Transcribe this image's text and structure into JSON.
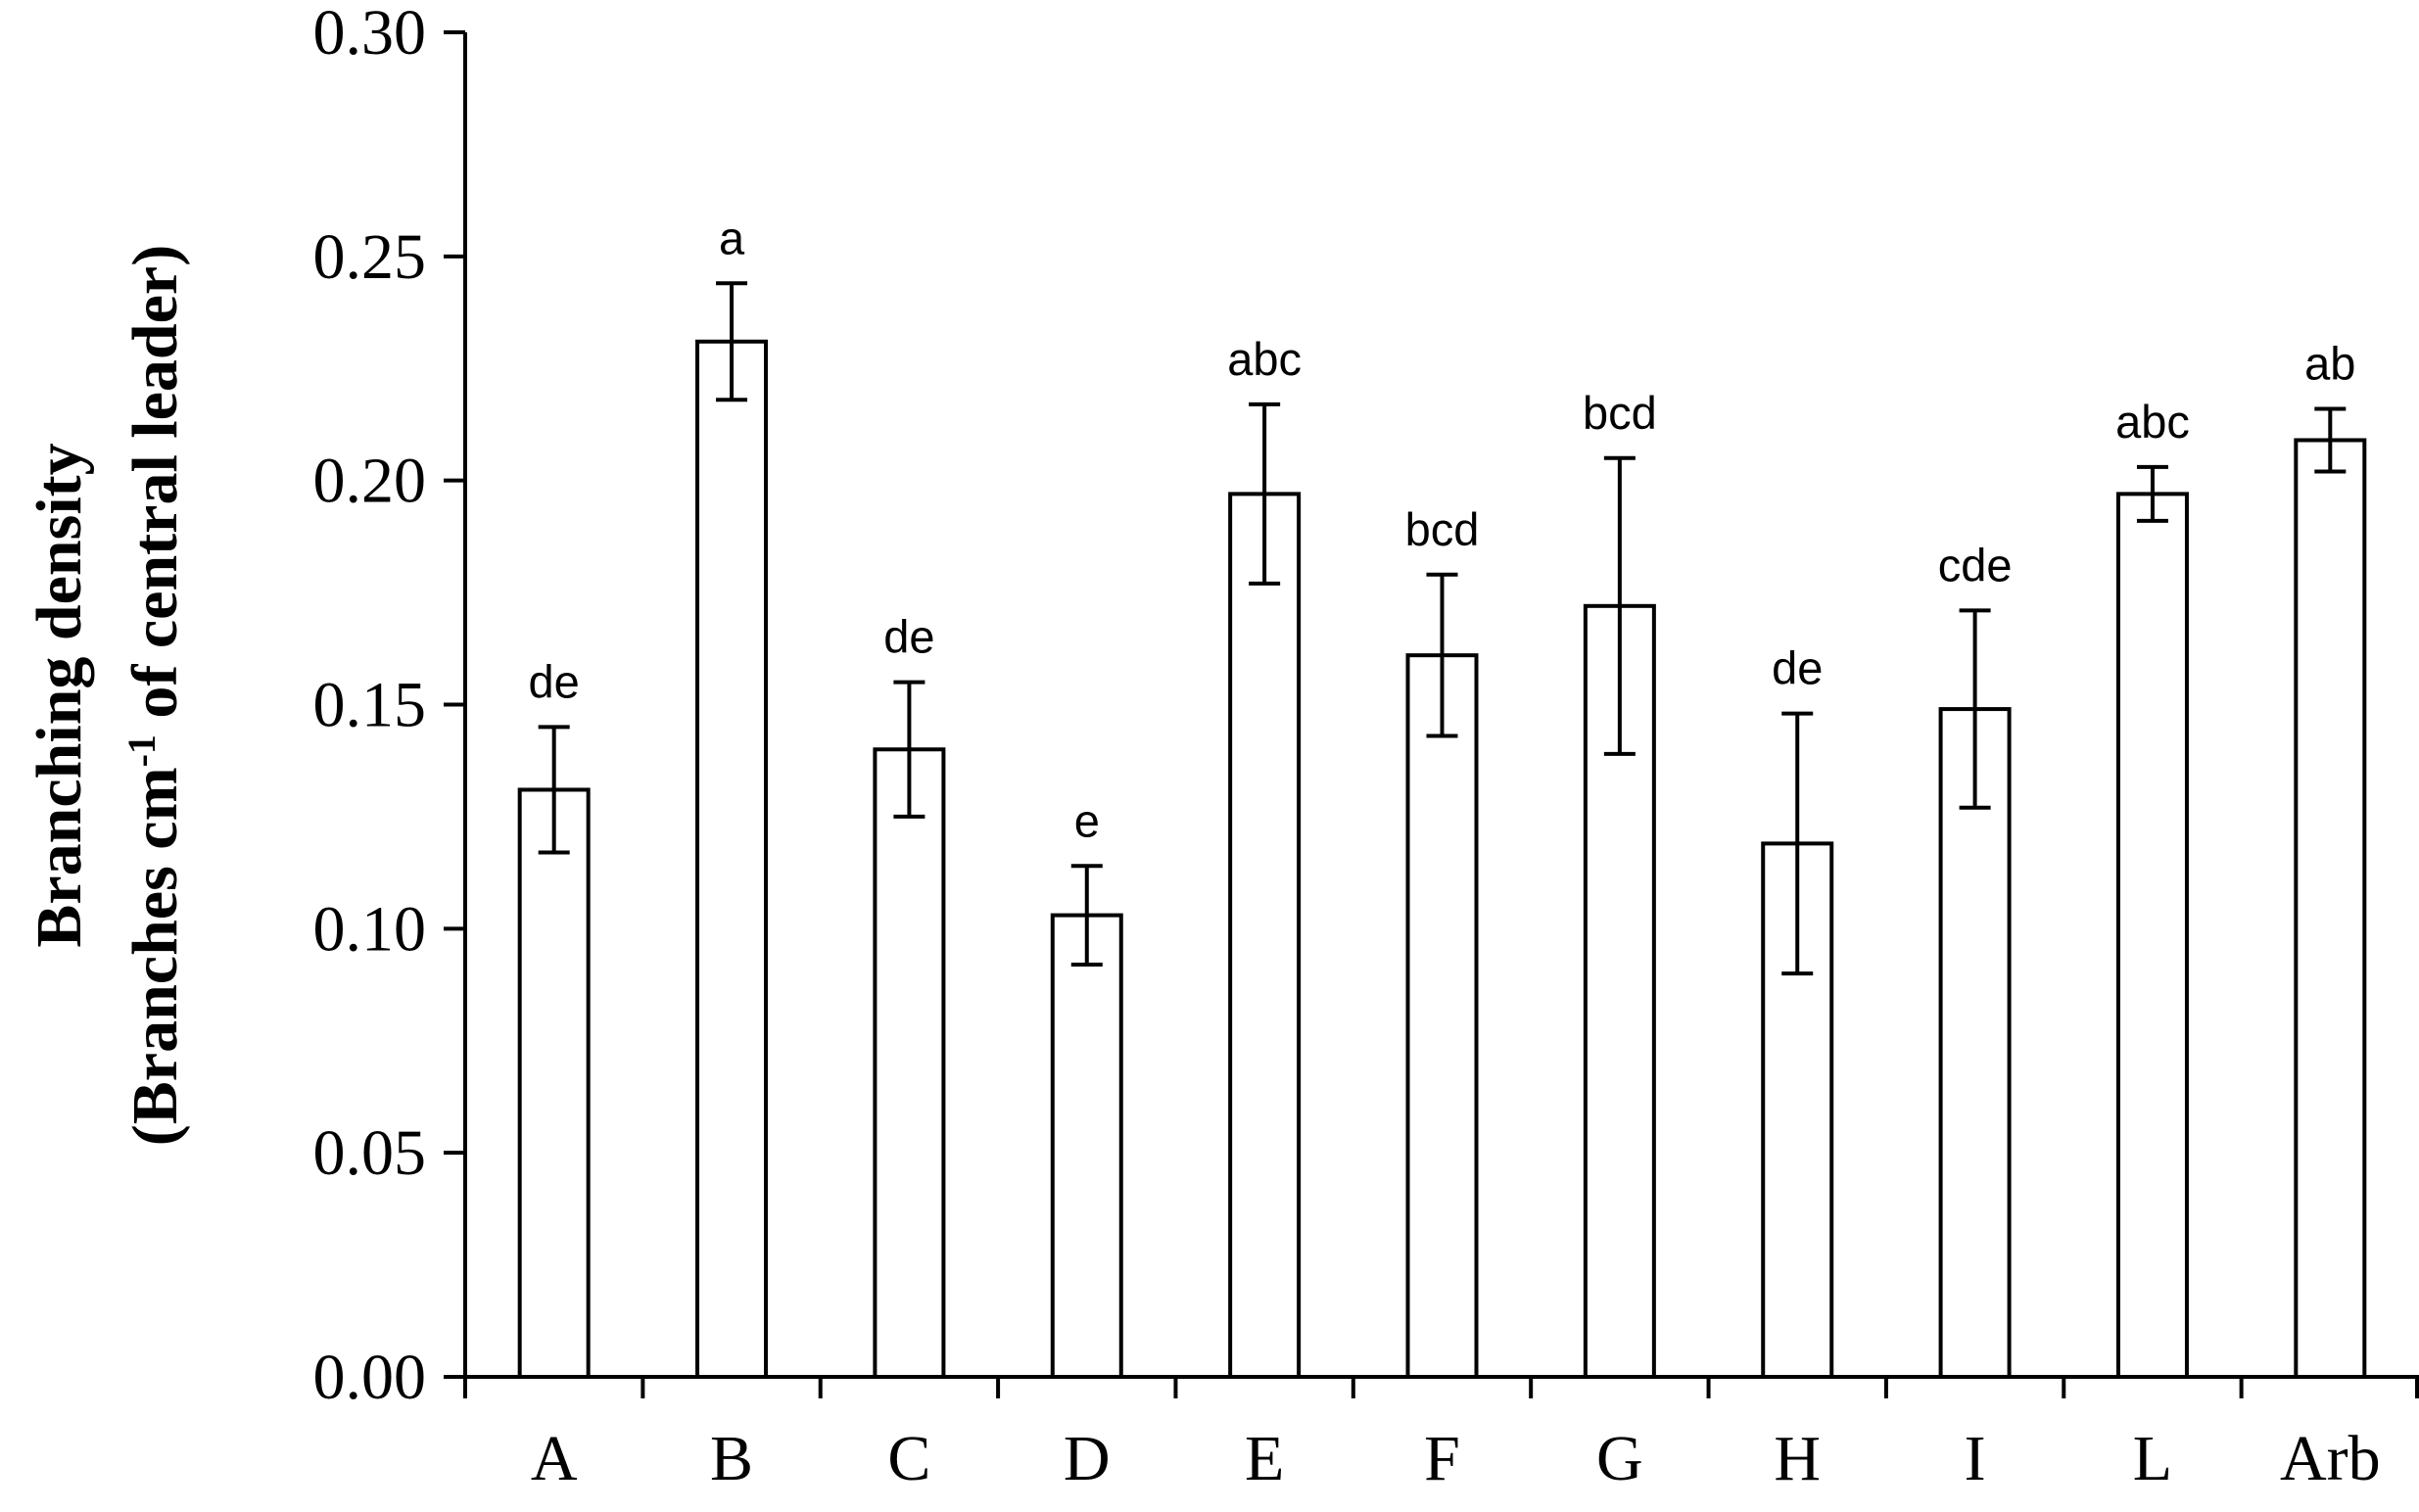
{
  "chart_data": {
    "type": "bar",
    "categories": [
      "A",
      "B",
      "C",
      "D",
      "E",
      "F",
      "G",
      "H",
      "I",
      "L",
      "Arb"
    ],
    "values": [
      0.131,
      0.231,
      0.14,
      0.103,
      0.197,
      0.161,
      0.172,
      0.119,
      0.149,
      0.197,
      0.209
    ],
    "errors": [
      0.014,
      0.013,
      0.015,
      0.011,
      0.02,
      0.018,
      0.033,
      0.029,
      0.022,
      0.006,
      0.007
    ],
    "significance": [
      "de",
      "a",
      "de",
      "e",
      "abc",
      "bcd",
      "bcd",
      "de",
      "cde",
      "abc",
      "ab"
    ],
    "ylabel_line1": "Branching density",
    "ylabel_line2_prefix": "(Branches cm",
    "ylabel_line2_sup": "-1",
    "ylabel_line2_suffix": " of central leader)",
    "xlabel": "",
    "ylim": [
      0,
      0.3
    ],
    "yticks": [
      "0.00",
      "0.05",
      "0.10",
      "0.15",
      "0.20",
      "0.25",
      "0.30"
    ],
    "bar_fill": "#ffffff",
    "bar_stroke": "#000000"
  }
}
